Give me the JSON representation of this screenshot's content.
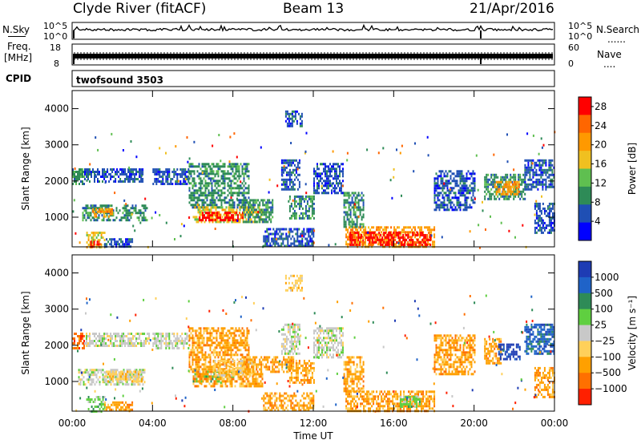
{
  "header": {
    "station": "Clyde River (fitACF)",
    "beam": "Beam 13",
    "date": "21/Apr/2016"
  },
  "strips": {
    "nsky_label": "N.Sky",
    "nsearch_label": "N.Search",
    "nsearch_dots": "......",
    "noise_ticks": [
      "10^5",
      "10^0"
    ],
    "freq_label_line1": "Freq.",
    "freq_label_line2": "[MHz]",
    "freq_ticks": [
      "18",
      "8"
    ],
    "nave_label": "Nave",
    "nave_dots": "....",
    "nave_ticks": [
      "60",
      "0"
    ],
    "cpid_label": "CPID",
    "cpid_value": "twofsound 3503"
  },
  "colors": {
    "power": [
      "#0000ff",
      "#1f4fb4",
      "#2e8b57",
      "#5fbf50",
      "#f0c020",
      "#ff9900",
      "#ff6600",
      "#ff0000"
    ],
    "velocity": [
      "#1e3cb4",
      "#1f63c8",
      "#2e8b57",
      "#5fcf40",
      "#c8c8c8",
      "#ffd05a",
      "#ffa000",
      "#ff7000",
      "#ff2000"
    ]
  },
  "chart_data": [
    {
      "type": "heatmap",
      "quantity": "Power",
      "xlabel": "",
      "ylabel": "Slant Range [km]",
      "x_ticks": [
        "00:00",
        "04:00",
        "08:00",
        "12:00",
        "16:00",
        "20:00",
        "00:00"
      ],
      "x_range_hours": [
        0,
        24
      ],
      "y_ticks": [
        1000,
        2000,
        3000,
        4000
      ],
      "y_range_km": [
        180,
        4500
      ],
      "colorbar": {
        "label": "Power [dB]",
        "ticks": [
          4,
          8,
          12,
          16,
          20,
          24,
          28
        ],
        "range": [
          0,
          30
        ]
      },
      "regions": [
        {
          "t0": 0.0,
          "t1": 0.6,
          "r0": 1900,
          "r1": 2350,
          "level": 2
        },
        {
          "t0": 0.6,
          "t1": 3.5,
          "r0": 2000,
          "r1": 2350,
          "level": 1
        },
        {
          "t0": 0.5,
          "t1": 3.7,
          "r0": 950,
          "r1": 1350,
          "level": 2
        },
        {
          "t0": 1.0,
          "t1": 2.0,
          "r0": 1000,
          "r1": 1250,
          "level": 5
        },
        {
          "t0": 0.7,
          "t1": 1.6,
          "r0": 200,
          "r1": 600,
          "level": 4
        },
        {
          "t0": 0.9,
          "t1": 1.4,
          "r0": 200,
          "r1": 350,
          "level": 7
        },
        {
          "t0": 1.6,
          "t1": 3.0,
          "r0": 200,
          "r1": 420,
          "level": 1
        },
        {
          "t0": 4.0,
          "t1": 5.8,
          "r0": 1900,
          "r1": 2350,
          "level": 1
        },
        {
          "t0": 5.8,
          "t1": 8.8,
          "r0": 1250,
          "r1": 2500,
          "level": 2
        },
        {
          "t0": 6.0,
          "t1": 9.5,
          "r0": 850,
          "r1": 1300,
          "level": 4
        },
        {
          "t0": 6.3,
          "t1": 8.5,
          "r0": 900,
          "r1": 1150,
          "level": 7
        },
        {
          "t0": 8.5,
          "t1": 10.0,
          "r0": 900,
          "r1": 1500,
          "level": 2
        },
        {
          "t0": 10.4,
          "t1": 11.3,
          "r0": 1800,
          "r1": 2600,
          "level": 1
        },
        {
          "t0": 10.8,
          "t1": 12.0,
          "r0": 1000,
          "r1": 1600,
          "level": 2
        },
        {
          "t0": 10.6,
          "t1": 11.4,
          "r0": 3550,
          "r1": 3950,
          "level": 1
        },
        {
          "t0": 9.5,
          "t1": 12.0,
          "r0": 200,
          "r1": 700,
          "level": 1
        },
        {
          "t0": 12.0,
          "t1": 13.5,
          "r0": 1700,
          "r1": 2500,
          "level": 1
        },
        {
          "t0": 13.6,
          "t1": 18.0,
          "r0": 200,
          "r1": 750,
          "level": 5
        },
        {
          "t0": 13.8,
          "t1": 17.8,
          "r0": 250,
          "r1": 600,
          "level": 7
        },
        {
          "t0": 13.5,
          "t1": 14.5,
          "r0": 750,
          "r1": 1700,
          "level": 2
        },
        {
          "t0": 18.0,
          "t1": 20.0,
          "r0": 1200,
          "r1": 2300,
          "level": 1
        },
        {
          "t0": 20.5,
          "t1": 22.5,
          "r0": 1500,
          "r1": 2200,
          "level": 2
        },
        {
          "t0": 21.0,
          "t1": 22.2,
          "r0": 1650,
          "r1": 2000,
          "level": 5
        },
        {
          "t0": 22.5,
          "t1": 24.0,
          "r0": 1800,
          "r1": 2600,
          "level": 1
        },
        {
          "t0": 23.0,
          "t1": 24.0,
          "r0": 600,
          "r1": 1400,
          "level": 1
        }
      ]
    },
    {
      "type": "heatmap",
      "quantity": "Velocity",
      "xlabel": "Time UT",
      "ylabel": "Slant Range [km]",
      "x_ticks": [
        "00:00",
        "04:00",
        "08:00",
        "12:00",
        "16:00",
        "20:00",
        "00:00"
      ],
      "x_range_hours": [
        0,
        24
      ],
      "y_ticks": [
        1000,
        2000,
        3000,
        4000
      ],
      "y_range_km": [
        180,
        4500
      ],
      "colorbar": {
        "label": "Velocity [m s⁻¹]",
        "ticks": [
          "1000",
          "500",
          "100",
          "25",
          "−25",
          "−100",
          "−500",
          "−1000"
        ]
      },
      "regions": [
        {
          "t0": 0.0,
          "t1": 0.6,
          "r0": 1900,
          "r1": 2350,
          "level": 7
        },
        {
          "t0": 0.6,
          "t1": 3.8,
          "r0": 2000,
          "r1": 2350,
          "level": 4
        },
        {
          "t0": 0.3,
          "t1": 3.6,
          "r0": 950,
          "r1": 1350,
          "level": 4
        },
        {
          "t0": 1.6,
          "t1": 3.5,
          "r0": 1000,
          "r1": 1300,
          "level": 5
        },
        {
          "t0": 0.7,
          "t1": 1.6,
          "r0": 200,
          "r1": 600,
          "level": 3
        },
        {
          "t0": 1.6,
          "t1": 3.0,
          "r0": 200,
          "r1": 450,
          "level": 6
        },
        {
          "t0": 4.0,
          "t1": 5.8,
          "r0": 1900,
          "r1": 2350,
          "level": 4
        },
        {
          "t0": 5.8,
          "t1": 8.8,
          "r0": 1250,
          "r1": 2500,
          "level": 6
        },
        {
          "t0": 6.0,
          "t1": 8.0,
          "r0": 1000,
          "r1": 1300,
          "level": 3
        },
        {
          "t0": 6.0,
          "t1": 9.5,
          "r0": 850,
          "r1": 1300,
          "level": 6
        },
        {
          "t0": 7.0,
          "t1": 9.0,
          "r0": 1200,
          "r1": 1600,
          "level": 5
        },
        {
          "t0": 8.5,
          "t1": 11.0,
          "r0": 1300,
          "r1": 1700,
          "level": 6
        },
        {
          "t0": 10.4,
          "t1": 11.3,
          "r0": 1800,
          "r1": 2600,
          "level": 4
        },
        {
          "t0": 10.8,
          "t1": 12.0,
          "r0": 1000,
          "r1": 1600,
          "level": 6
        },
        {
          "t0": 10.6,
          "t1": 11.4,
          "r0": 3550,
          "r1": 3950,
          "level": 5
        },
        {
          "t0": 9.5,
          "t1": 12.0,
          "r0": 200,
          "r1": 700,
          "level": 6
        },
        {
          "t0": 12.0,
          "t1": 13.5,
          "r0": 1700,
          "r1": 2500,
          "level": 4
        },
        {
          "t0": 13.6,
          "t1": 18.0,
          "r0": 200,
          "r1": 750,
          "level": 6
        },
        {
          "t0": 13.5,
          "t1": 14.5,
          "r0": 750,
          "r1": 1700,
          "level": 6
        },
        {
          "t0": 16.3,
          "t1": 17.3,
          "r0": 300,
          "r1": 600,
          "level": 3
        },
        {
          "t0": 18.0,
          "t1": 20.0,
          "r0": 1200,
          "r1": 2300,
          "level": 6
        },
        {
          "t0": 20.5,
          "t1": 21.3,
          "r0": 1500,
          "r1": 2200,
          "level": 6
        },
        {
          "t0": 21.2,
          "t1": 22.3,
          "r0": 1650,
          "r1": 2050,
          "level": 0
        },
        {
          "t0": 22.5,
          "t1": 24.0,
          "r0": 1800,
          "r1": 2600,
          "level": 1
        },
        {
          "t0": 23.0,
          "t1": 24.0,
          "r0": 600,
          "r1": 1400,
          "level": 6
        }
      ]
    }
  ]
}
